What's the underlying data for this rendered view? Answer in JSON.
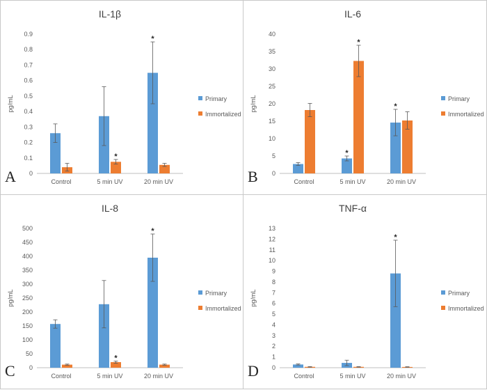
{
  "chart_data": [
    {
      "panel_label": "A",
      "type": "bar",
      "title": "IL-1β",
      "ylabel": "pg/mL",
      "ylim": [
        0,
        0.9
      ],
      "ystep": 0.1,
      "yticks": [
        "0",
        "0.1",
        "0.2",
        "0.3",
        "0.4",
        "0.5",
        "0.6",
        "0.7",
        "0.8",
        "0.9"
      ],
      "categories": [
        "Control",
        "5 min UV",
        "20 min UV"
      ],
      "series": [
        {
          "name": "Primary",
          "color": "#5b9bd5",
          "values": [
            0.26,
            0.37,
            0.65
          ],
          "errors": [
            0.06,
            0.19,
            0.2
          ],
          "significant": [
            false,
            false,
            true
          ]
        },
        {
          "name": "Immortalized",
          "color": "#ed7d31",
          "values": [
            0.04,
            0.075,
            0.055
          ],
          "errors": [
            0.025,
            0.015,
            0.01
          ],
          "significant": [
            false,
            true,
            false
          ]
        }
      ],
      "legend": "right",
      "significance_marker": "*"
    },
    {
      "panel_label": "B",
      "type": "bar",
      "title": "IL-6",
      "ylabel": "pg/mL",
      "ylim": [
        0,
        40
      ],
      "ystep": 5,
      "yticks": [
        "0",
        "5",
        "10",
        "15",
        "20",
        "25",
        "30",
        "35",
        "40"
      ],
      "categories": [
        "Control",
        "5 min UV",
        "20 min UV"
      ],
      "series": [
        {
          "name": "Primary",
          "color": "#5b9bd5",
          "values": [
            2.7,
            4.3,
            14.6
          ],
          "errors": [
            0.4,
            0.7,
            3.8
          ],
          "significant": [
            false,
            true,
            true
          ]
        },
        {
          "name": "Immortalized",
          "color": "#ed7d31",
          "values": [
            18.2,
            32.3,
            15.2
          ],
          "errors": [
            1.9,
            4.5,
            2.5
          ],
          "significant": [
            false,
            true,
            false
          ]
        }
      ],
      "legend": "right",
      "significance_marker": "*"
    },
    {
      "panel_label": "C",
      "type": "bar",
      "title": "IL-8",
      "ylabel": "pg/mL",
      "ylim": [
        0,
        500
      ],
      "ystep": 50,
      "yticks": [
        "0",
        "50",
        "100",
        "150",
        "200",
        "250",
        "300",
        "350",
        "400",
        "450",
        "500"
      ],
      "categories": [
        "Control",
        "5 min UV",
        "20 min UV"
      ],
      "series": [
        {
          "name": "Primary",
          "color": "#5b9bd5",
          "values": [
            157,
            228,
            395
          ],
          "errors": [
            15,
            85,
            85
          ],
          "significant": [
            false,
            false,
            true
          ]
        },
        {
          "name": "Immortalized",
          "color": "#ed7d31",
          "values": [
            11,
            20,
            11
          ],
          "errors": [
            2,
            4,
            2
          ],
          "significant": [
            false,
            true,
            false
          ]
        }
      ],
      "legend": "right",
      "significance_marker": "*"
    },
    {
      "panel_label": "D",
      "type": "bar",
      "title": "TNF-α",
      "ylabel": "pg/mL",
      "ylim": [
        0,
        13
      ],
      "ystep": 1,
      "yticks": [
        "0",
        "1",
        "2",
        "3",
        "4",
        "5",
        "6",
        "7",
        "8",
        "9",
        "10",
        "11",
        "12",
        "13"
      ],
      "categories": [
        "Control",
        "5 min UV",
        "20 min UV"
      ],
      "series": [
        {
          "name": "Primary",
          "color": "#5b9bd5",
          "values": [
            0.3,
            0.45,
            8.8
          ],
          "errors": [
            0.05,
            0.25,
            3.1
          ],
          "significant": [
            false,
            false,
            true
          ]
        },
        {
          "name": "Immortalized",
          "color": "#ed7d31",
          "values": [
            0.08,
            0.08,
            0.07
          ],
          "errors": [
            0.02,
            0.02,
            0.02
          ],
          "significant": [
            false,
            false,
            false
          ]
        }
      ],
      "legend": "right",
      "significance_marker": "*"
    }
  ]
}
